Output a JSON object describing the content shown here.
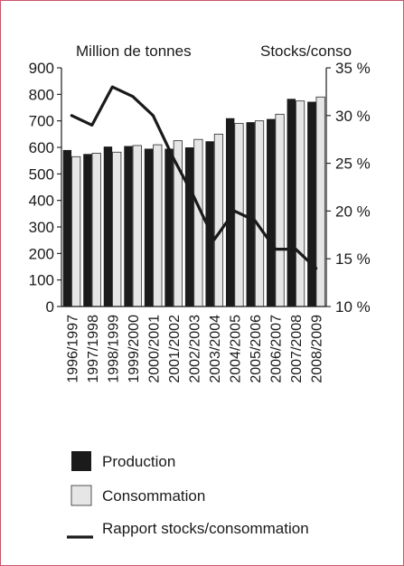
{
  "chart_data": {
    "type": "bar+line",
    "title": "",
    "left_axis_label": "Million de tonnes",
    "right_axis_label": "Stocks/conso",
    "left_ylim": [
      0,
      900
    ],
    "left_ticks": [
      0,
      100,
      200,
      300,
      400,
      500,
      600,
      700,
      800,
      900
    ],
    "right_ylim": [
      10,
      35
    ],
    "right_ticks": [
      10,
      15,
      20,
      25,
      30,
      35
    ],
    "right_tick_labels": [
      "10 %",
      "15 %",
      "20 %",
      "25 %",
      "30 %",
      "35 %"
    ],
    "categories": [
      "1996/1997",
      "1997/1998",
      "1998/1999",
      "1999/2000",
      "2000/2001",
      "2001/2002",
      "2002/2003",
      "2003/2004",
      "2004/2005",
      "2005/2006",
      "2006/2007",
      "2007/2008",
      "2008/2009"
    ],
    "series": [
      {
        "name": "Production",
        "kind": "bar",
        "axis": "left",
        "color": "#1b1b1b",
        "values": [
          590,
          575,
          603,
          605,
          595,
          595,
          600,
          623,
          710,
          695,
          707,
          783,
          772
        ]
      },
      {
        "name": "Consommation",
        "kind": "bar",
        "axis": "left",
        "color": "#e6e6e6",
        "values": [
          565,
          578,
          582,
          607,
          610,
          625,
          630,
          650,
          690,
          700,
          725,
          775,
          790
        ]
      },
      {
        "name": "Rapport stocks/consommation",
        "kind": "line",
        "axis": "right",
        "color": "#1a1a1a",
        "values": [
          30,
          29,
          33,
          32,
          30,
          25.5,
          21.5,
          17,
          20,
          19,
          16,
          16,
          14
        ]
      }
    ],
    "legend_position": "bottom",
    "grid": false
  }
}
